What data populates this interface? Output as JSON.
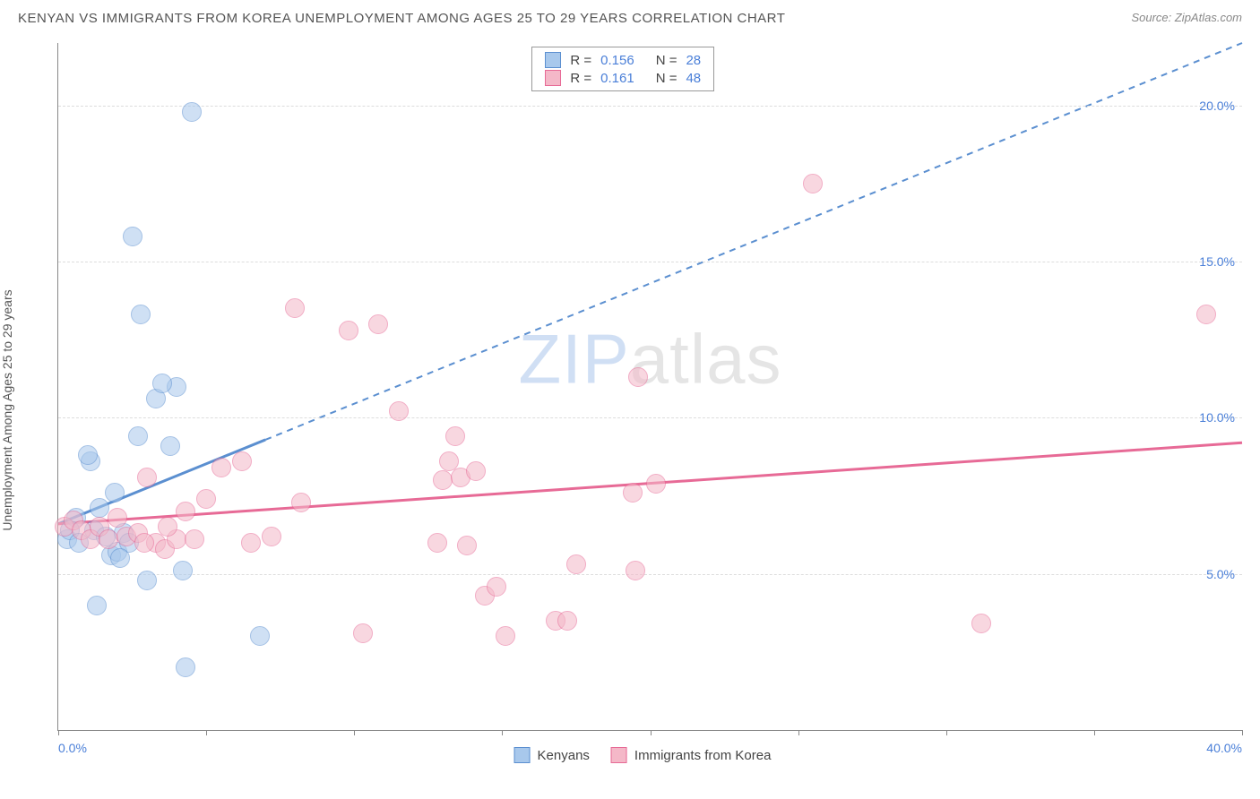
{
  "title": "KENYAN VS IMMIGRANTS FROM KOREA UNEMPLOYMENT AMONG AGES 25 TO 29 YEARS CORRELATION CHART",
  "source_label": "Source: ZipAtlas.com",
  "y_axis_label": "Unemployment Among Ages 25 to 29 years",
  "watermark": {
    "zip": "ZIP",
    "atlas": "atlas"
  },
  "chart": {
    "type": "scatter",
    "xlim": [
      0,
      40
    ],
    "ylim": [
      0,
      22
    ],
    "x_ticks": [
      0,
      5,
      10,
      15,
      20,
      25,
      30,
      35,
      40
    ],
    "x_tick_labels": {
      "0": "0.0%",
      "40": "40.0%"
    },
    "y_grid": [
      5,
      10,
      15,
      20
    ],
    "y_tick_labels": {
      "5": "5.0%",
      "10": "10.0%",
      "15": "15.0%",
      "20": "20.0%"
    },
    "x_label_color": "#4a7fd8",
    "y_label_color": "#4a7fd8",
    "grid_color": "#dddddd",
    "axis_color": "#888888",
    "background_color": "#ffffff",
    "point_radius": 11,
    "point_opacity": 0.55,
    "series": [
      {
        "name": "Kenyans",
        "fill": "#a8c8ec",
        "stroke": "#5b8fd0",
        "points": [
          [
            0.3,
            6.1
          ],
          [
            0.6,
            6.8
          ],
          [
            0.4,
            6.4
          ],
          [
            1.1,
            8.6
          ],
          [
            1.2,
            6.4
          ],
          [
            1.4,
            7.1
          ],
          [
            1.8,
            5.6
          ],
          [
            2.0,
            5.7
          ],
          [
            2.2,
            6.3
          ],
          [
            1.9,
            7.6
          ],
          [
            2.4,
            6.0
          ],
          [
            1.3,
            4.0
          ],
          [
            4.5,
            19.8
          ],
          [
            2.5,
            15.8
          ],
          [
            2.8,
            13.3
          ],
          [
            3.3,
            10.6
          ],
          [
            3.8,
            9.1
          ],
          [
            4.0,
            11.0
          ],
          [
            3.5,
            11.1
          ],
          [
            3.0,
            4.8
          ],
          [
            4.2,
            5.1
          ],
          [
            6.8,
            3.0
          ],
          [
            4.3,
            2.0
          ],
          [
            1.0,
            8.8
          ],
          [
            0.7,
            6.0
          ],
          [
            1.6,
            6.2
          ],
          [
            2.1,
            5.5
          ],
          [
            2.7,
            9.4
          ]
        ],
        "trend": {
          "x1": 0,
          "y1": 6.6,
          "x2": 40,
          "y2": 22,
          "solid_until_x": 7,
          "width": 3,
          "dash": "7,6"
        }
      },
      {
        "name": "Immigrants from Korea",
        "fill": "#f4b8c8",
        "stroke": "#e76a96",
        "points": [
          [
            0.2,
            6.5
          ],
          [
            0.5,
            6.7
          ],
          [
            0.8,
            6.4
          ],
          [
            1.1,
            6.1
          ],
          [
            1.4,
            6.5
          ],
          [
            1.7,
            6.1
          ],
          [
            2.0,
            6.8
          ],
          [
            2.3,
            6.2
          ],
          [
            2.7,
            6.3
          ],
          [
            3.0,
            8.1
          ],
          [
            3.3,
            6.0
          ],
          [
            3.6,
            5.8
          ],
          [
            4.0,
            6.1
          ],
          [
            4.3,
            7.0
          ],
          [
            4.6,
            6.1
          ],
          [
            5.0,
            7.4
          ],
          [
            6.5,
            6.0
          ],
          [
            8.0,
            13.5
          ],
          [
            9.8,
            12.8
          ],
          [
            10.8,
            13.0
          ],
          [
            11.5,
            10.2
          ],
          [
            12.8,
            6.0
          ],
          [
            13.2,
            8.6
          ],
          [
            13.0,
            8.0
          ],
          [
            13.4,
            9.4
          ],
          [
            13.6,
            8.1
          ],
          [
            13.8,
            5.9
          ],
          [
            14.1,
            8.3
          ],
          [
            14.4,
            4.3
          ],
          [
            14.8,
            4.6
          ],
          [
            15.1,
            3.0
          ],
          [
            10.3,
            3.1
          ],
          [
            16.8,
            3.5
          ],
          [
            17.5,
            5.3
          ],
          [
            19.4,
            7.6
          ],
          [
            19.5,
            5.1
          ],
          [
            19.6,
            11.3
          ],
          [
            25.5,
            17.5
          ],
          [
            20.2,
            7.9
          ],
          [
            31.2,
            3.4
          ],
          [
            38.8,
            13.3
          ],
          [
            6.2,
            8.6
          ],
          [
            2.9,
            6.0
          ],
          [
            3.7,
            6.5
          ],
          [
            5.5,
            8.4
          ],
          [
            7.2,
            6.2
          ],
          [
            8.2,
            7.3
          ],
          [
            17.2,
            3.5
          ]
        ],
        "trend": {
          "x1": 0,
          "y1": 6.6,
          "x2": 40,
          "y2": 9.2,
          "solid_until_x": 40,
          "width": 3
        }
      }
    ]
  },
  "stats": [
    {
      "swatch_fill": "#a8c8ec",
      "swatch_stroke": "#5b8fd0",
      "r_label": "R =",
      "r": "0.156",
      "n_label": "N =",
      "n": "28",
      "val_color": "#4a7fd8"
    },
    {
      "swatch_fill": "#f4b8c8",
      "swatch_stroke": "#e76a96",
      "r_label": "R =",
      "r": "0.161",
      "n_label": "N =",
      "n": "48",
      "val_color": "#4a7fd8"
    }
  ],
  "bottom_legend": [
    {
      "swatch_fill": "#a8c8ec",
      "swatch_stroke": "#5b8fd0",
      "label": "Kenyans"
    },
    {
      "swatch_fill": "#f4b8c8",
      "swatch_stroke": "#e76a96",
      "label": "Immigrants from Korea"
    }
  ]
}
